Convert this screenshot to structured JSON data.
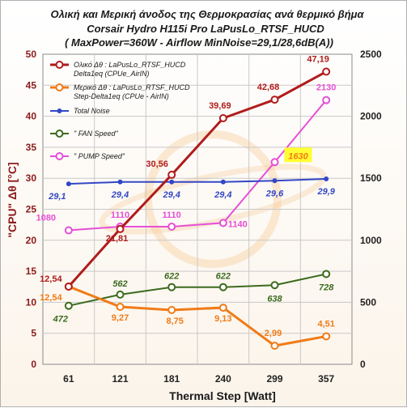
{
  "chart_data": {
    "type": "line",
    "title": [
      "Ολική και Μερική άνοδος της Θερμοκρασίας ανά θερμικό βήμα",
      "Corsair Hydro H115i Pro   LaPusLo_RTSF_HUCD",
      "( MaxPower=360W - Airflow MinNoise=29,1/28,6dB(A))"
    ],
    "xlabel": "Thermal Step [Watt]",
    "ylabel": "\"CPU\" Δθ  [°C]",
    "categories": [
      "61",
      "121",
      "181",
      "240",
      "299",
      "357"
    ],
    "ylim_left": [
      0,
      50
    ],
    "yticks_left": [
      "0",
      "5",
      "10",
      "15",
      "20",
      "25",
      "30",
      "35",
      "40",
      "45",
      "50"
    ],
    "ylim_right": [
      0,
      2500
    ],
    "yticks_right": [
      "0",
      "500",
      "1000",
      "1500",
      "2000",
      "2500"
    ],
    "grid": true,
    "legend_position": "top-left",
    "series": [
      {
        "name": "Ολικό Δθ :  LaPusLo_RTSF_HUCD Delta1eq (CPUe_AirIN)",
        "axis": "left",
        "color": "#b01c1c",
        "values": [
          12.54,
          21.81,
          30.56,
          39.69,
          42.68,
          47.19
        ],
        "labels": [
          "12,54",
          "21,81",
          "30,56",
          "39,69",
          "42,68",
          "47,19"
        ]
      },
      {
        "name": "Μερικό Δθ :  LaPusLo_RTSF_HUCD Step-Delta1eq (CPUe - AirIN)",
        "axis": "left",
        "color": "#f07b17",
        "values": [
          12.54,
          9.27,
          8.75,
          9.13,
          2.99,
          4.51
        ],
        "labels": [
          "12,54",
          "9,27",
          "8,75",
          "9,13",
          "2,99",
          "4,51"
        ]
      },
      {
        "name": "Total Noise",
        "axis": "left",
        "color": "#3347c6",
        "values": [
          29.1,
          29.4,
          29.4,
          29.4,
          29.6,
          29.9
        ],
        "labels": [
          "29,1",
          "29,4",
          "29,4",
          "29,4",
          "29,6",
          "29,9"
        ]
      },
      {
        "name": "\" FAN Speed\"",
        "axis": "right",
        "color": "#3c6b1e",
        "values": [
          472,
          562,
          622,
          622,
          638,
          728
        ],
        "labels": [
          "472",
          "562",
          "622",
          "622",
          "638",
          "728"
        ]
      },
      {
        "name": "\" PUMP Speed\"",
        "axis": "right",
        "color": "#e64fd6",
        "values": [
          1080,
          1110,
          1110,
          1140,
          1630,
          2130
        ],
        "labels": [
          "1080",
          "1110",
          "1110",
          "1140",
          "1630",
          "2130"
        ]
      }
    ]
  },
  "colors": {
    "left_axis_text": "#8b1a1a",
    "highlight_box": "#ffff33",
    "watermark": "#f6c58a"
  }
}
